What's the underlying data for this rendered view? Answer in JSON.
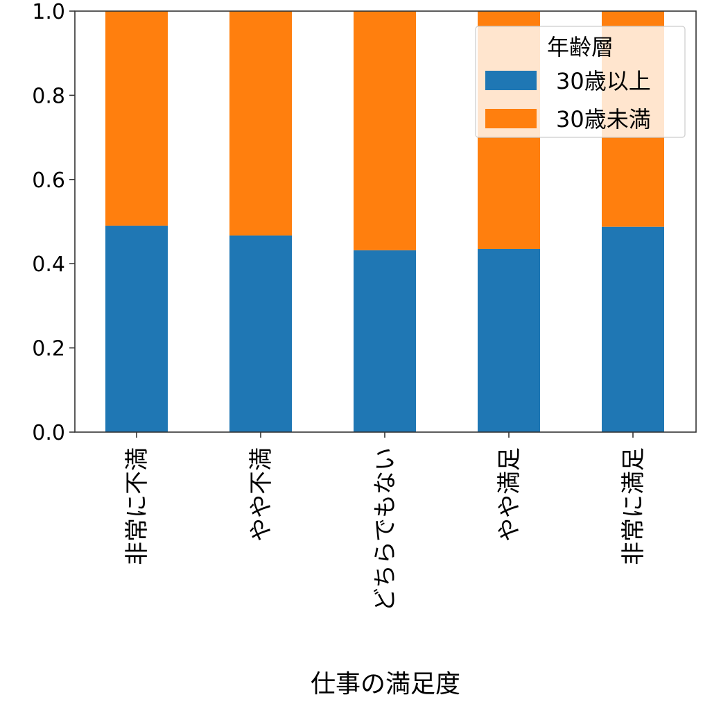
{
  "chart_data": {
    "type": "bar",
    "stacked": true,
    "categories": [
      "非常に不満",
      "やや不満",
      "どちらでもない",
      "やや満足",
      "非常に満足"
    ],
    "series": [
      {
        "name": "30歳以上",
        "values": [
          0.49,
          0.467,
          0.432,
          0.435,
          0.488
        ],
        "color": "#1f77b4"
      },
      {
        "name": "30歳未満",
        "values": [
          0.51,
          0.533,
          0.568,
          0.565,
          0.512
        ],
        "color": "#ff7f0e"
      }
    ],
    "xlabel": "仕事の満足度",
    "ylabel": "",
    "ylim": [
      0,
      1.0
    ],
    "yticks": [
      "0.0",
      "0.2",
      "0.4",
      "0.6",
      "0.8",
      "1.0"
    ],
    "legend": {
      "title": "年齢層",
      "placement": "top-right"
    },
    "grid": false
  }
}
